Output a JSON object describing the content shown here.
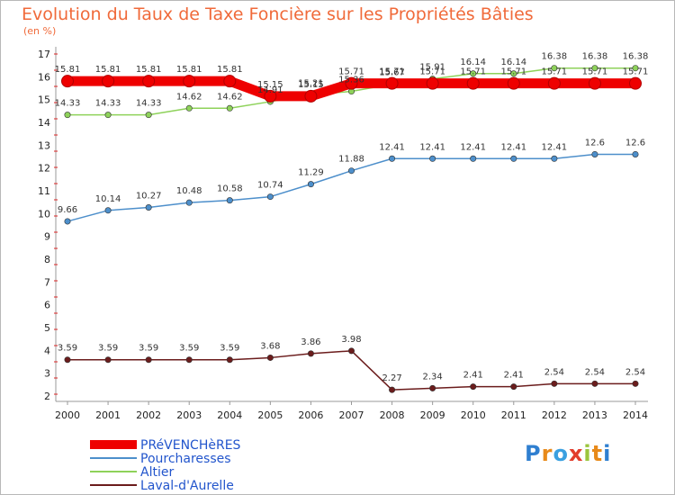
{
  "chart_data": {
    "type": "line",
    "title": "Evolution du Taux de Taxe Foncière sur les Propriétés Bâties",
    "subtitle": "(en %)",
    "x": [
      2000,
      2001,
      2002,
      2003,
      2004,
      2005,
      2006,
      2007,
      2008,
      2009,
      2010,
      2011,
      2012,
      2013,
      2014
    ],
    "ylim": [
      2,
      17
    ],
    "yticks": [
      2,
      3,
      4,
      5,
      6,
      7,
      8,
      9,
      10,
      11,
      12,
      13,
      14,
      15,
      16,
      17
    ],
    "grid": false,
    "legend_position": "bottom-left",
    "series": [
      {
        "name": "PRéVENCHèRES",
        "color": "#ee0000",
        "values": [
          15.81,
          15.81,
          15.81,
          15.81,
          15.81,
          15.15,
          15.15,
          15.71,
          15.71,
          15.71,
          15.71,
          15.71,
          15.71,
          15.71,
          15.71
        ],
        "labels": [
          "15.81",
          "15.81",
          "15.81",
          "15.81",
          "15.81",
          "15.15",
          "15.15",
          "15.71",
          "15.71",
          "15.71",
          "15.71",
          "15.71",
          "15.71",
          "15.71",
          "15.71"
        ]
      },
      {
        "name": "Pourcharesses",
        "color": "#4d8fcb",
        "values": [
          9.66,
          10.14,
          10.27,
          10.48,
          10.58,
          10.74,
          11.29,
          11.88,
          12.41,
          12.41,
          12.41,
          12.41,
          12.41,
          12.6,
          12.6
        ],
        "labels": [
          "9.66",
          "10.14",
          "10.27",
          "10.48",
          "10.58",
          "10.74",
          "11.29",
          "11.88",
          "12.41",
          "12.41",
          "12.41",
          "12.41",
          "12.41",
          "12.6",
          "12.6"
        ]
      },
      {
        "name": "Altier",
        "color": "#8ed25a",
        "values": [
          14.33,
          14.33,
          14.33,
          14.62,
          14.62,
          14.91,
          15.21,
          15.36,
          15.67,
          15.91,
          16.14,
          16.14,
          16.38,
          16.38,
          16.38
        ],
        "labels": [
          "14.33",
          "14.33",
          "14.33",
          "14.62",
          "14.62",
          "14.91",
          "15.21",
          "15.36",
          "15.67",
          "15.91",
          "16.14",
          "16.14",
          "16.38",
          "16.38",
          "16.38"
        ]
      },
      {
        "name": "Laval-d'Aurelle",
        "color": "#6b1c1c",
        "values": [
          3.59,
          3.59,
          3.59,
          3.59,
          3.59,
          3.68,
          3.86,
          3.98,
          2.27,
          2.34,
          2.41,
          2.41,
          2.54,
          2.54,
          2.54
        ],
        "labels": [
          "3.59",
          "3.59",
          "3.59",
          "3.59",
          "3.59",
          "3.68",
          "3.86",
          "3.98",
          "2.27",
          "2.34",
          "2.41",
          "2.41",
          "2.54",
          "2.54",
          "2.54"
        ]
      }
    ]
  },
  "logo": {
    "text": "Proxiti",
    "letter_colors": [
      "#2f7fd0",
      "#e88a1a",
      "#3aa0e0",
      "#e23c2c",
      "#9bc53d",
      "#e88a1a",
      "#2f7fd0"
    ]
  }
}
